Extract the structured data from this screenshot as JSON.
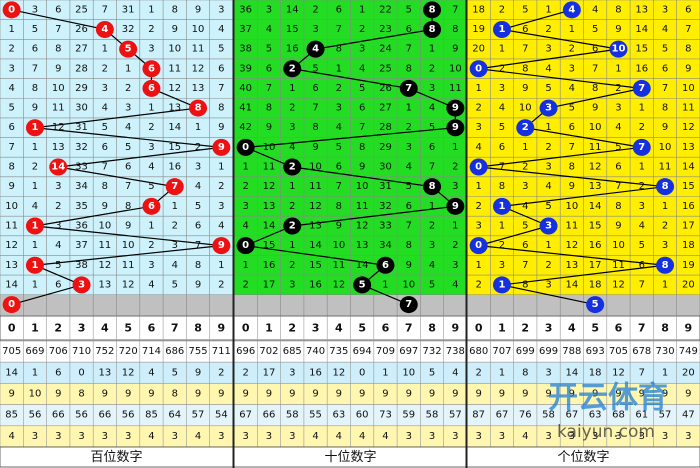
{
  "digits": [
    0,
    1,
    2,
    3,
    4,
    5,
    6,
    7,
    8,
    9
  ],
  "panels": [
    {
      "title": "百位数字",
      "background": "#cdf2fb",
      "ball": "#ee1111",
      "rows": [
        [
          0,
          3,
          6,
          25,
          7,
          31,
          1,
          8,
          9,
          3
        ],
        [
          1,
          5,
          7,
          26,
          4,
          32,
          2,
          9,
          10,
          4
        ],
        [
          2,
          6,
          8,
          27,
          1,
          5,
          3,
          10,
          11,
          5
        ],
        [
          3,
          7,
          9,
          28,
          2,
          1,
          6,
          11,
          12,
          6
        ],
        [
          4,
          8,
          10,
          29,
          3,
          2,
          6,
          12,
          13,
          7
        ],
        [
          5,
          9,
          11,
          30,
          4,
          3,
          1,
          13,
          8,
          8
        ],
        [
          6,
          1,
          12,
          31,
          5,
          4,
          2,
          14,
          1,
          9
        ],
        [
          7,
          1,
          13,
          32,
          6,
          5,
          3,
          15,
          2,
          9
        ],
        [
          8,
          2,
          14,
          33,
          7,
          6,
          4,
          16,
          3,
          1
        ],
        [
          9,
          1,
          3,
          34,
          8,
          7,
          5,
          7,
          4,
          2
        ],
        [
          10,
          4,
          2,
          35,
          9,
          8,
          6,
          1,
          5,
          3
        ],
        [
          11,
          1,
          3,
          36,
          10,
          9,
          1,
          2,
          6,
          4
        ],
        [
          12,
          1,
          4,
          37,
          11,
          10,
          2,
          3,
          7,
          9
        ],
        [
          13,
          1,
          5,
          38,
          12,
          11,
          3,
          4,
          8,
          1
        ],
        [
          14,
          1,
          6,
          3,
          13,
          12,
          4,
          5,
          9,
          2
        ]
      ],
      "draws": [
        0,
        4,
        5,
        6,
        6,
        8,
        1,
        9,
        2,
        7,
        6,
        1,
        9,
        1,
        3,
        0
      ],
      "stats": [
        [
          705,
          669,
          706,
          710,
          752,
          720,
          714,
          686,
          755,
          711
        ],
        [
          14,
          1,
          6,
          0,
          13,
          12,
          4,
          5,
          9,
          2
        ],
        [
          9,
          10,
          9,
          8,
          9,
          9,
          9,
          8,
          9,
          9
        ],
        [
          85,
          56,
          66,
          56,
          66,
          56,
          85,
          64,
          57,
          54
        ],
        [
          4,
          3,
          3,
          3,
          3,
          3,
          4,
          3,
          4,
          3
        ]
      ]
    },
    {
      "title": "十位数字",
      "background": "#22dd22",
      "ball": "#000000",
      "rows": [
        [
          36,
          3,
          14,
          2,
          6,
          1,
          22,
          5,
          8,
          7
        ],
        [
          37,
          4,
          15,
          3,
          7,
          2,
          23,
          6,
          8,
          8
        ],
        [
          38,
          5,
          16,
          4,
          8,
          3,
          24,
          7,
          1,
          9
        ],
        [
          39,
          6,
          2,
          5,
          1,
          4,
          25,
          8,
          2,
          10
        ],
        [
          40,
          7,
          1,
          6,
          2,
          5,
          26,
          7,
          3,
          11
        ],
        [
          41,
          8,
          2,
          7,
          3,
          6,
          27,
          1,
          4,
          9
        ],
        [
          42,
          9,
          3,
          8,
          4,
          7,
          28,
          2,
          5,
          9
        ],
        [
          0,
          10,
          4,
          9,
          5,
          8,
          29,
          3,
          6,
          1
        ],
        [
          1,
          11,
          2,
          10,
          6,
          9,
          30,
          4,
          7,
          2
        ],
        [
          2,
          12,
          1,
          11,
          7,
          10,
          31,
          5,
          8,
          3
        ],
        [
          3,
          13,
          2,
          12,
          8,
          11,
          32,
          6,
          1,
          9
        ],
        [
          4,
          14,
          2,
          13,
          9,
          12,
          33,
          7,
          2,
          1
        ],
        [
          0,
          15,
          1,
          14,
          10,
          13,
          34,
          8,
          3,
          2
        ],
        [
          1,
          16,
          2,
          15,
          11,
          14,
          6,
          9,
          4,
          3
        ],
        [
          2,
          17,
          3,
          16,
          12,
          5,
          1,
          10,
          5,
          4
        ]
      ],
      "draws": [
        8,
        8,
        3,
        2,
        7,
        9,
        9,
        0,
        2,
        8,
        9,
        2,
        0,
        6,
        5,
        7
      ],
      "stats": [
        [
          696,
          702,
          685,
          740,
          735,
          694,
          709,
          697,
          732,
          738
        ],
        [
          2,
          17,
          3,
          16,
          12,
          0,
          1,
          10,
          5,
          4
        ],
        [
          9,
          9,
          9,
          9,
          9,
          9,
          9,
          9,
          9,
          9
        ],
        [
          67,
          66,
          58,
          55,
          63,
          60,
          73,
          59,
          58,
          57
        ],
        [
          3,
          3,
          3,
          4,
          4,
          4,
          4,
          3,
          3,
          3
        ]
      ]
    },
    {
      "title": "个位数字",
      "background": "#ffee00",
      "ball": "#1530e0",
      "rows": [
        [
          18,
          2,
          5,
          1,
          4,
          4,
          8,
          13,
          3,
          6
        ],
        [
          19,
          1,
          6,
          2,
          1,
          5,
          9,
          14,
          4,
          7
        ],
        [
          20,
          1,
          7,
          3,
          2,
          6,
          10,
          15,
          5,
          8
        ],
        [
          0,
          2,
          8,
          4,
          3,
          7,
          1,
          16,
          6,
          9
        ],
        [
          1,
          3,
          9,
          5,
          4,
          8,
          2,
          7,
          7,
          10
        ],
        [
          2,
          4,
          10,
          3,
          5,
          9,
          3,
          1,
          8,
          11
        ],
        [
          3,
          5,
          2,
          1,
          6,
          10,
          4,
          2,
          9,
          12
        ],
        [
          4,
          6,
          1,
          2,
          7,
          11,
          5,
          7,
          10,
          13
        ],
        [
          0,
          7,
          2,
          3,
          8,
          12,
          6,
          1,
          11,
          14
        ],
        [
          1,
          8,
          3,
          4,
          9,
          13,
          7,
          2,
          8,
          15
        ],
        [
          2,
          1,
          4,
          5,
          10,
          14,
          8,
          3,
          1,
          16
        ],
        [
          3,
          1,
          5,
          3,
          11,
          15,
          9,
          4,
          2,
          17
        ],
        [
          0,
          2,
          6,
          1,
          12,
          16,
          10,
          5,
          3,
          18
        ],
        [
          1,
          3,
          7,
          2,
          13,
          17,
          11,
          6,
          8,
          19
        ],
        [
          2,
          1,
          8,
          3,
          14,
          18,
          12,
          7,
          1,
          20
        ]
      ],
      "draws": [
        4,
        1,
        6,
        0,
        7,
        3,
        2,
        7,
        0,
        8,
        1,
        3,
        0,
        8,
        1,
        5
      ],
      "stats": [
        [
          680,
          707,
          699,
          699,
          788,
          693,
          705,
          678,
          730,
          749
        ],
        [
          2,
          1,
          8,
          3,
          14,
          18,
          12,
          7,
          1,
          20
        ],
        [
          9,
          9,
          9,
          9,
          9,
          9,
          9,
          9,
          9,
          9
        ],
        [
          87,
          67,
          76,
          58,
          67,
          63,
          68,
          61,
          57,
          47
        ],
        [
          3,
          3,
          4,
          3,
          3,
          3,
          3,
          3,
          3,
          3
        ]
      ]
    }
  ],
  "stat_backgrounds": [
    "#ffffff",
    "#cdeefa",
    "#fff6b0",
    "#e4f4fb",
    "#fff6b0"
  ],
  "watermark": {
    "brand": "开云体育",
    "site": "kaiyun.com"
  }
}
